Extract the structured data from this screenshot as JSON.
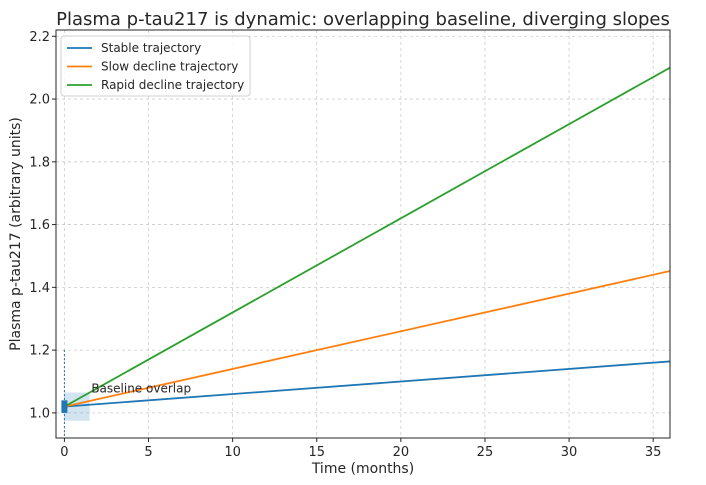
{
  "chart_data": {
    "type": "line",
    "title": "Plasma p-tau217 is dynamic: overlapping baseline, diverging slopes",
    "xlabel": "Time (months)",
    "ylabel": "Plasma p-tau217 (arbitrary units)",
    "xlim": [
      -0.5,
      36
    ],
    "ylim": [
      0.92,
      2.22
    ],
    "xticks": [
      0,
      5,
      10,
      15,
      20,
      25,
      30,
      35
    ],
    "yticks": [
      1.0,
      1.2,
      1.4,
      1.6,
      1.8,
      2.0,
      2.2
    ],
    "ytick_labels": [
      "1.0",
      "1.2",
      "1.4",
      "1.6",
      "1.8",
      "2.0",
      "2.2"
    ],
    "grid": true,
    "legend_position": "top-left",
    "series": [
      {
        "name": "Stable trajectory",
        "color": "#1f77b4",
        "x": [
          0,
          36
        ],
        "y": [
          1.02,
          1.164
        ]
      },
      {
        "name": "Slow decline trajectory",
        "color": "#ff7f0e",
        "x": [
          0,
          36
        ],
        "y": [
          1.02,
          1.452
        ]
      },
      {
        "name": "Rapid decline trajectory",
        "color": "#2ca02c",
        "x": [
          0,
          36
        ],
        "y": [
          1.02,
          2.1
        ]
      }
    ],
    "annotations": [
      {
        "text": "Baseline overlap",
        "x": 1.6,
        "y": 1.065
      }
    ],
    "baseline_region": {
      "x": [
        0,
        1.5
      ],
      "y": [
        0.975,
        1.065
      ],
      "color": "#1f77b4"
    },
    "baseline_cluster": {
      "x": 0,
      "y_low": 1.0,
      "y_high": 1.04,
      "color": "#1f77b4"
    }
  }
}
